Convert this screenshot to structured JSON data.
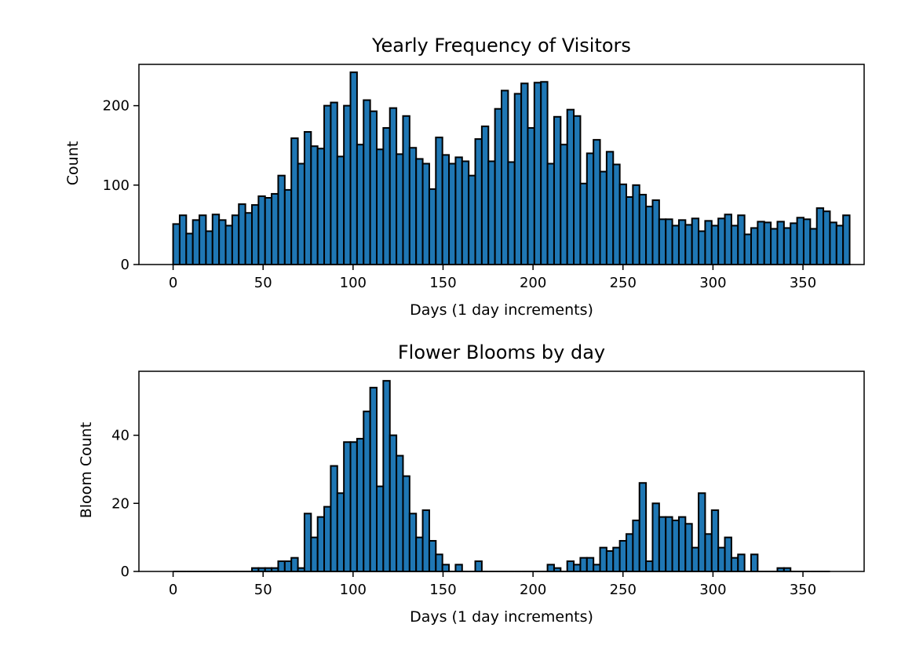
{
  "chart_data": [
    {
      "type": "bar",
      "title": "Yearly Frequency of Visitors",
      "xlabel": "Days (1 day increments)",
      "ylabel": "Count",
      "xlim": [
        -19,
        384
      ],
      "ylim": [
        0,
        252
      ],
      "xticks": [
        0,
        50,
        100,
        150,
        200,
        250,
        300,
        350
      ],
      "yticks": [
        0,
        100,
        200
      ],
      "bin_start": 0,
      "bin_width": 3.65,
      "bar_color": "#1f77b4",
      "edge_color": "#000000",
      "grid": false,
      "values": [
        51,
        62,
        39,
        56,
        62,
        42,
        63,
        56,
        49,
        62,
        76,
        65,
        75,
        86,
        84,
        89,
        112,
        94,
        159,
        127,
        167,
        149,
        146,
        200,
        204,
        136,
        200,
        242,
        151,
        207,
        193,
        145,
        172,
        197,
        139,
        187,
        147,
        133,
        127,
        95,
        160,
        138,
        127,
        135,
        130,
        112,
        158,
        174,
        130,
        196,
        219,
        129,
        215,
        228,
        172,
        229,
        230,
        127,
        186,
        151,
        195,
        187,
        102,
        140,
        157,
        117,
        142,
        126,
        101,
        85,
        100,
        88,
        73,
        81,
        57,
        57,
        49,
        56,
        50,
        58,
        42,
        55,
        49,
        58,
        63,
        49,
        62,
        38,
        46,
        54,
        53,
        45,
        54,
        46,
        52,
        59,
        57,
        45,
        71,
        67,
        53,
        49,
        62
      ]
    },
    {
      "type": "bar",
      "title": "Flower Blooms by day",
      "xlabel": "Days (1 day increments)",
      "ylabel": "Bloom Count",
      "xlim": [
        -19,
        384
      ],
      "ylim": [
        0,
        58.8
      ],
      "xticks": [
        0,
        50,
        100,
        150,
        200,
        250,
        300,
        350
      ],
      "yticks": [
        0,
        20,
        40
      ],
      "bin_start": 0,
      "bin_width": 3.65,
      "bar_color": "#1f77b4",
      "edge_color": "#000000",
      "grid": false,
      "values": [
        0,
        0,
        0,
        0,
        0,
        0,
        0,
        0,
        0,
        0,
        0,
        0,
        1,
        1,
        1,
        1,
        3,
        3,
        4,
        1,
        17,
        10,
        16,
        19,
        31,
        23,
        38,
        38,
        39,
        47,
        54,
        25,
        56,
        40,
        34,
        28,
        17,
        10,
        18,
        9,
        5,
        2,
        0,
        2,
        0,
        0,
        3,
        0,
        0,
        0,
        0,
        0,
        0,
        0,
        0,
        0,
        0,
        2,
        1,
        0,
        3,
        2,
        4,
        4,
        2,
        7,
        6,
        7,
        9,
        11,
        15,
        26,
        3,
        20,
        16,
        16,
        15,
        16,
        14,
        7,
        23,
        11,
        18,
        7,
        10,
        4,
        5,
        0,
        5,
        0,
        0,
        0,
        1,
        1,
        0,
        0,
        0,
        0,
        0,
        0
      ]
    }
  ]
}
